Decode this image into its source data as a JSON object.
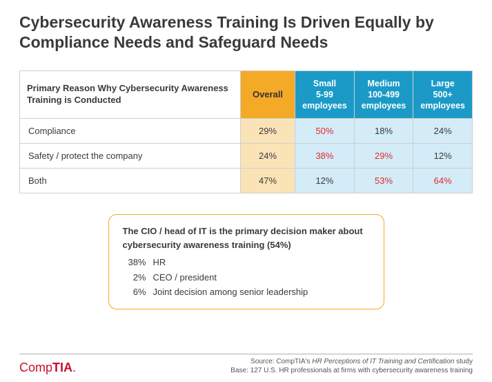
{
  "title": "Cybersecurity Awareness Training Is Driven Equally by Compliance Needs and Safeguard Needs",
  "table": {
    "row_header_title": "Primary Reason Why Cybersecurity Awareness Training is Conducted",
    "columns": [
      {
        "label": "Overall",
        "kind": "overall"
      },
      {
        "label": "Small\n5-99 employees",
        "kind": "size"
      },
      {
        "label": "Medium\n100-499 employees",
        "kind": "size"
      },
      {
        "label": "Large\n500+ employees",
        "kind": "size"
      }
    ],
    "rows": [
      {
        "label": "Compliance",
        "cells": [
          {
            "v": "29%",
            "hl": false
          },
          {
            "v": "50%",
            "hl": true
          },
          {
            "v": "18%",
            "hl": false
          },
          {
            "v": "24%",
            "hl": false
          }
        ]
      },
      {
        "label": "Safety / protect the company",
        "cells": [
          {
            "v": "24%",
            "hl": false
          },
          {
            "v": "38%",
            "hl": true
          },
          {
            "v": "29%",
            "hl": true
          },
          {
            "v": "12%",
            "hl": false
          }
        ]
      },
      {
        "label": "Both",
        "cells": [
          {
            "v": "47%",
            "hl": false
          },
          {
            "v": "12%",
            "hl": false
          },
          {
            "v": "53%",
            "hl": true
          },
          {
            "v": "64%",
            "hl": true
          }
        ]
      }
    ],
    "colors": {
      "overall_header_bg": "#f4a927",
      "overall_cell_bg": "#fbe3b8",
      "size_header_bg": "#1b9ac7",
      "size_cell_bg": "#d3ecf7",
      "highlight_text": "#e22b2b",
      "border": "#cfcfcf"
    }
  },
  "callout": {
    "lead": "The CIO / head of IT is the primary decision maker about cybersecurity awareness training (54%)",
    "items": [
      {
        "pct": "38%",
        "label": "HR"
      },
      {
        "pct": "2%",
        "label": "CEO / president"
      },
      {
        "pct": "6%",
        "label": "Joint decision among senior leadership"
      }
    ],
    "border_color": "#f4a927"
  },
  "footer": {
    "logo_plain": "Comp",
    "logo_bold": "TIA",
    "logo_suffix": ".",
    "logo_color": "#c8102e",
    "source_prefix": "Source: CompTIA's ",
    "source_italic": "HR Perceptions of IT Training and Certification",
    "source_suffix": " study",
    "base": "Base: 127 U.S. HR professionals at firms with cybersecurity awareness training"
  }
}
